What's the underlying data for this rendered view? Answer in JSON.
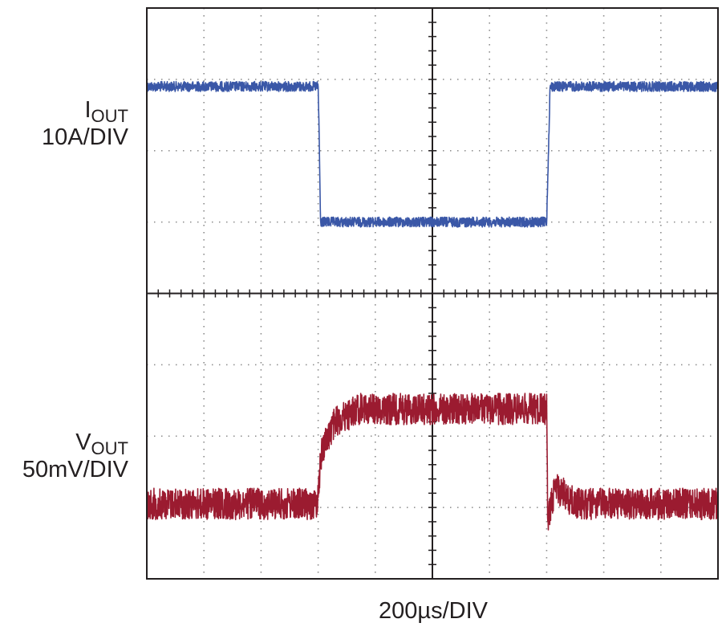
{
  "chart_data": {
    "type": "line",
    "title": "",
    "grid": true,
    "grid_divisions": {
      "x": 10,
      "y": 8
    },
    "xlabel": "200µs/DIV",
    "x_unit_per_div_us": 200,
    "xlim_div": [
      0,
      10
    ],
    "ylim_div": [
      0,
      8
    ],
    "series": [
      {
        "name": "IOUT",
        "label_main": "I",
        "label_sub": "OUT",
        "scale": "10A/DIV",
        "color": "#3a57a7",
        "noise_div": 0.07,
        "points_div": [
          [
            0,
            1.1
          ],
          [
            3.0,
            1.1
          ],
          [
            3.02,
            1.9
          ],
          [
            3.04,
            3.0
          ],
          [
            7.0,
            3.0
          ],
          [
            7.06,
            1.1
          ],
          [
            10,
            1.1
          ]
        ]
      },
      {
        "name": "VOUT",
        "label_main": "V",
        "label_sub": "OUT",
        "scale": "50mV/DIV",
        "color": "#9b1b30",
        "noise_div": 0.22,
        "points_div": [
          [
            0,
            6.95
          ],
          [
            2.98,
            6.95
          ],
          [
            3.06,
            6.2
          ],
          [
            3.3,
            5.8
          ],
          [
            3.7,
            5.62
          ],
          [
            7.0,
            5.62
          ],
          [
            7.02,
            7.2
          ],
          [
            7.15,
            6.7
          ],
          [
            7.5,
            6.95
          ],
          [
            10,
            6.95
          ]
        ]
      }
    ]
  }
}
